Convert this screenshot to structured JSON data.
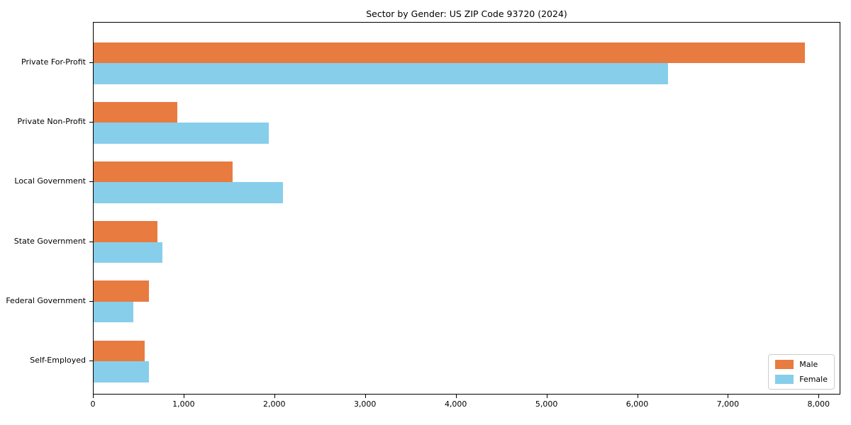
{
  "chart_data": {
    "type": "bar",
    "orientation": "horizontal",
    "title": "Sector by Gender: US ZIP Code 93720 (2024)",
    "xlabel": "",
    "ylabel": "",
    "categories": [
      "Private For-Profit",
      "Private Non-Profit",
      "Local Government",
      "State Government",
      "Federal Government",
      "Self-Employed"
    ],
    "series": [
      {
        "name": "Male",
        "color": "#E87B40",
        "values": [
          7840,
          920,
          1530,
          700,
          610,
          560
        ]
      },
      {
        "name": "Female",
        "color": "#87CEEB",
        "values": [
          6330,
          1930,
          2090,
          760,
          440,
          610
        ]
      }
    ],
    "xlim": [
      0,
      8240
    ],
    "x_ticks": [
      0,
      1000,
      2000,
      3000,
      4000,
      5000,
      6000,
      7000,
      8000
    ],
    "x_tick_labels": [
      "0",
      "1,000",
      "2,000",
      "3,000",
      "4,000",
      "5,000",
      "6,000",
      "7,000",
      "8,000"
    ],
    "grid": false,
    "legend": {
      "position": "lower right",
      "labels": [
        "Male",
        "Female"
      ]
    },
    "colors": {
      "axis": "#000000",
      "text": "#000000",
      "legend_border": "#cccccc",
      "background": "#ffffff"
    }
  }
}
